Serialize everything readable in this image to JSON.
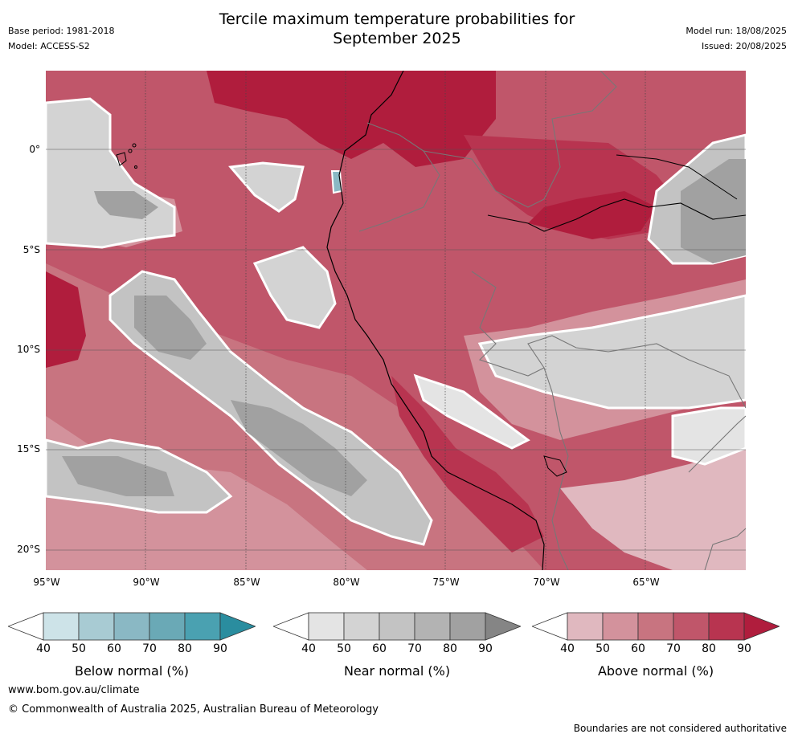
{
  "header": {
    "title_line1": "Tercile maximum temperature probabilities for",
    "title_line2": "September 2025",
    "base_period": "Base period: 1981-2018",
    "model": "Model: ACCESS-S2",
    "model_run": "Model run: 18/08/2025",
    "issued": "Issued: 20/08/2025"
  },
  "map": {
    "lat_labels": [
      "0°",
      "5°S",
      "10°S",
      "15°S",
      "20°S"
    ],
    "lon_labels": [
      "95°W",
      "90°W",
      "85°W",
      "80°W",
      "75°W",
      "70°W",
      "65°W"
    ]
  },
  "legends": [
    {
      "title": "Below normal (%)",
      "ticks": [
        "40",
        "50",
        "60",
        "70",
        "80",
        "90"
      ],
      "colors": [
        "#ffffff",
        "#cde3e8",
        "#a8cbd3",
        "#8ab8c4",
        "#6aa9b6",
        "#4aa1b1",
        "#2a8d9f"
      ]
    },
    {
      "title": "Near normal (%)",
      "ticks": [
        "40",
        "50",
        "60",
        "70",
        "80",
        "90"
      ],
      "colors": [
        "#ffffff",
        "#e4e4e4",
        "#d3d3d3",
        "#c3c3c3",
        "#b3b3b3",
        "#a1a1a1",
        "#858585"
      ]
    },
    {
      "title": "Above normal (%)",
      "ticks": [
        "40",
        "50",
        "60",
        "70",
        "80",
        "90"
      ],
      "colors": [
        "#ffffff",
        "#e0b8bf",
        "#d3929c",
        "#c87480",
        "#c0566a",
        "#b83450",
        "#b01d3d"
      ]
    }
  ],
  "footer": {
    "url": "www.bom.gov.au/climate",
    "copyright": "© Commonwealth of Australia 2025, Australian Bureau of Meteorology",
    "disclaimer": "Boundaries are not considered authoritative"
  }
}
